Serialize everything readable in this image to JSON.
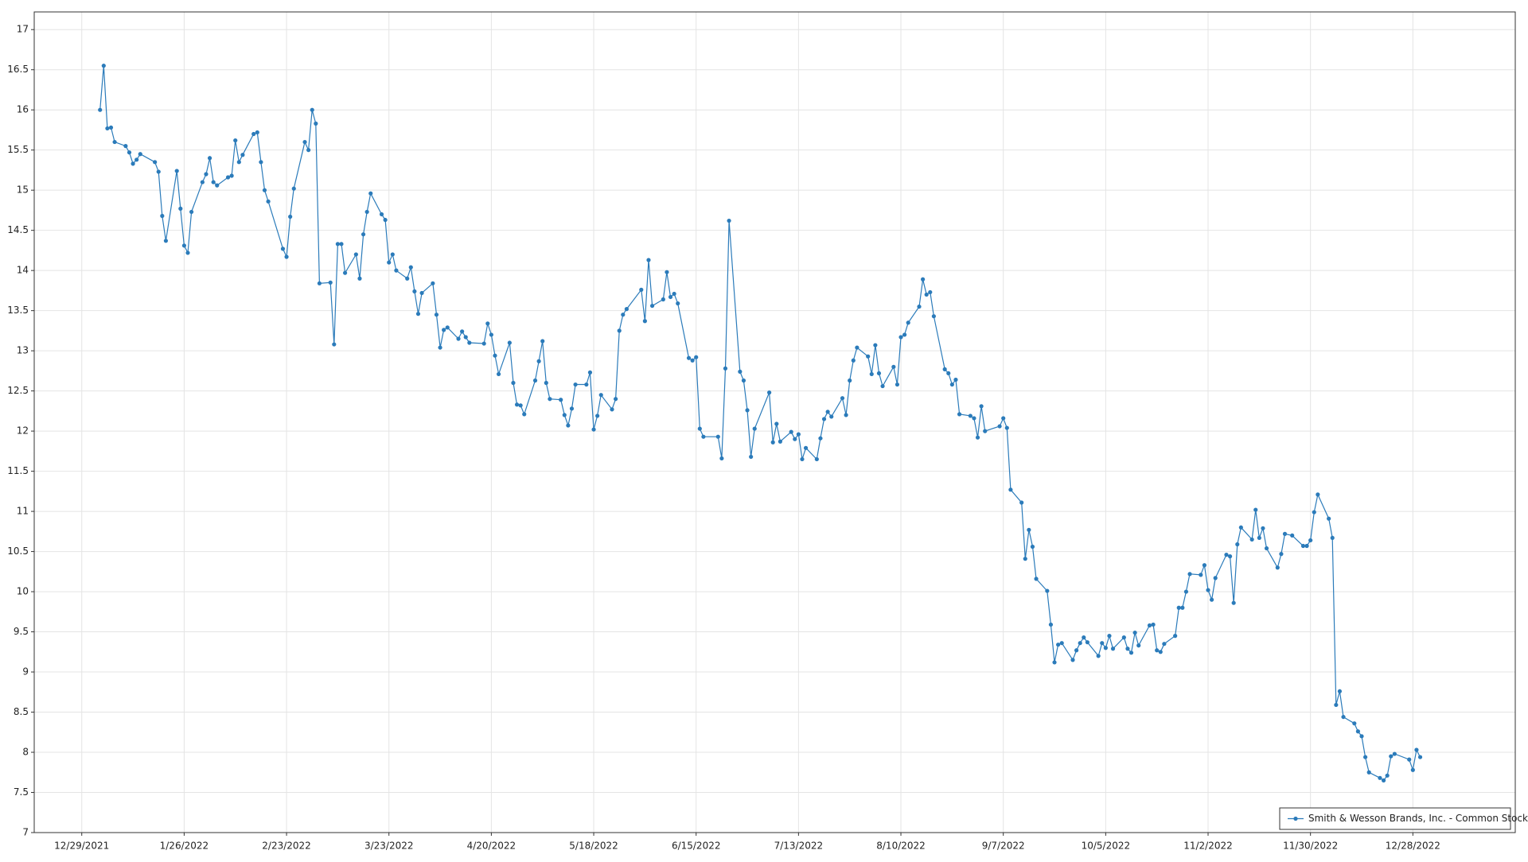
{
  "chart_data": {
    "type": "line",
    "x": [
      "1/3/2022",
      "1/4/2022",
      "1/5/2022",
      "1/6/2022",
      "1/7/2022",
      "1/10/2022",
      "1/11/2022",
      "1/12/2022",
      "1/13/2022",
      "1/14/2022",
      "1/18/2022",
      "1/19/2022",
      "1/20/2022",
      "1/21/2022",
      "1/24/2022",
      "1/25/2022",
      "1/26/2022",
      "1/27/2022",
      "1/28/2022",
      "1/31/2022",
      "2/1/2022",
      "2/2/2022",
      "2/3/2022",
      "2/4/2022",
      "2/7/2022",
      "2/8/2022",
      "2/9/2022",
      "2/10/2022",
      "2/11/2022",
      "2/14/2022",
      "2/15/2022",
      "2/16/2022",
      "2/17/2022",
      "2/18/2022",
      "2/22/2022",
      "2/23/2022",
      "2/24/2022",
      "2/25/2022",
      "2/28/2022",
      "3/1/2022",
      "3/2/2022",
      "3/3/2022",
      "3/4/2022",
      "3/7/2022",
      "3/8/2022",
      "3/9/2022",
      "3/10/2022",
      "3/11/2022",
      "3/14/2022",
      "3/15/2022",
      "3/16/2022",
      "3/17/2022",
      "3/18/2022",
      "3/21/2022",
      "3/22/2022",
      "3/23/2022",
      "3/24/2022",
      "3/25/2022",
      "3/28/2022",
      "3/29/2022",
      "3/30/2022",
      "3/31/2022",
      "4/1/2022",
      "4/4/2022",
      "4/5/2022",
      "4/6/2022",
      "4/7/2022",
      "4/8/2022",
      "4/11/2022",
      "4/12/2022",
      "4/13/2022",
      "4/14/2022",
      "4/18/2022",
      "4/19/2022",
      "4/20/2022",
      "4/21/2022",
      "4/22/2022",
      "4/25/2022",
      "4/26/2022",
      "4/27/2022",
      "4/28/2022",
      "4/29/2022",
      "5/2/2022",
      "5/3/2022",
      "5/4/2022",
      "5/5/2022",
      "5/6/2022",
      "5/9/2022",
      "5/10/2022",
      "5/11/2022",
      "5/12/2022",
      "5/13/2022",
      "5/16/2022",
      "5/17/2022",
      "5/18/2022",
      "5/19/2022",
      "5/20/2022",
      "5/23/2022",
      "5/24/2022",
      "5/25/2022",
      "5/26/2022",
      "5/27/2022",
      "5/31/2022",
      "6/1/2022",
      "6/2/2022",
      "6/3/2022",
      "6/6/2022",
      "6/7/2022",
      "6/8/2022",
      "6/9/2022",
      "6/10/2022",
      "6/13/2022",
      "6/14/2022",
      "6/15/2022",
      "6/16/2022",
      "6/17/2022",
      "6/21/2022",
      "6/22/2022",
      "6/23/2022",
      "6/24/2022",
      "6/27/2022",
      "6/28/2022",
      "6/29/2022",
      "6/30/2022",
      "7/1/2022",
      "7/5/2022",
      "7/6/2022",
      "7/7/2022",
      "7/8/2022",
      "7/11/2022",
      "7/12/2022",
      "7/13/2022",
      "7/14/2022",
      "7/15/2022",
      "7/18/2022",
      "7/19/2022",
      "7/20/2022",
      "7/21/2022",
      "7/22/2022",
      "7/25/2022",
      "7/26/2022",
      "7/27/2022",
      "7/28/2022",
      "7/29/2022",
      "8/1/2022",
      "8/2/2022",
      "8/3/2022",
      "8/4/2022",
      "8/5/2022",
      "8/8/2022",
      "8/9/2022",
      "8/10/2022",
      "8/11/2022",
      "8/12/2022",
      "8/15/2022",
      "8/16/2022",
      "8/17/2022",
      "8/18/2022",
      "8/19/2022",
      "8/22/2022",
      "8/23/2022",
      "8/24/2022",
      "8/25/2022",
      "8/26/2022",
      "8/29/2022",
      "8/30/2022",
      "8/31/2022",
      "9/1/2022",
      "9/2/2022",
      "9/6/2022",
      "9/7/2022",
      "9/8/2022",
      "9/9/2022",
      "9/12/2022",
      "9/13/2022",
      "9/14/2022",
      "9/15/2022",
      "9/16/2022",
      "9/19/2022",
      "9/20/2022",
      "9/21/2022",
      "9/22/2022",
      "9/23/2022",
      "9/26/2022",
      "9/27/2022",
      "9/28/2022",
      "9/29/2022",
      "9/30/2022",
      "10/3/2022",
      "10/4/2022",
      "10/5/2022",
      "10/6/2022",
      "10/7/2022",
      "10/10/2022",
      "10/11/2022",
      "10/12/2022",
      "10/13/2022",
      "10/14/2022",
      "10/17/2022",
      "10/18/2022",
      "10/19/2022",
      "10/20/2022",
      "10/21/2022",
      "10/24/2022",
      "10/25/2022",
      "10/26/2022",
      "10/27/2022",
      "10/28/2022",
      "10/31/2022",
      "11/1/2022",
      "11/2/2022",
      "11/3/2022",
      "11/4/2022",
      "11/7/2022",
      "11/8/2022",
      "11/9/2022",
      "11/10/2022",
      "11/11/2022",
      "11/14/2022",
      "11/15/2022",
      "11/16/2022",
      "11/17/2022",
      "11/18/2022",
      "11/21/2022",
      "11/22/2022",
      "11/23/2022",
      "11/25/2022",
      "11/28/2022",
      "11/29/2022",
      "11/30/2022",
      "12/1/2022",
      "12/2/2022",
      "12/5/2022",
      "12/6/2022",
      "12/7/2022",
      "12/8/2022",
      "12/9/2022",
      "12/12/2022",
      "12/13/2022",
      "12/14/2022",
      "12/15/2022",
      "12/16/2022",
      "12/19/2022",
      "12/20/2022",
      "12/21/2022",
      "12/22/2022",
      "12/23/2022",
      "12/27/2022",
      "12/28/2022",
      "12/29/2022",
      "12/30/2022"
    ],
    "series": [
      {
        "name": "Smith & Wesson Brands, Inc. - Common Stock",
        "color": "#2b7bba",
        "values": [
          16.0,
          16.55,
          15.77,
          15.78,
          15.6,
          15.55,
          15.47,
          15.33,
          15.38,
          15.45,
          15.35,
          15.23,
          14.68,
          14.37,
          15.24,
          14.77,
          14.31,
          14.22,
          14.73,
          15.1,
          15.2,
          15.4,
          15.1,
          15.06,
          15.16,
          15.18,
          15.62,
          15.35,
          15.44,
          15.7,
          15.72,
          15.35,
          15.0,
          14.86,
          14.27,
          14.17,
          14.67,
          15.02,
          15.6,
          15.5,
          16.0,
          15.83,
          13.84,
          13.85,
          13.08,
          14.33,
          14.33,
          13.97,
          14.2,
          13.9,
          14.45,
          14.73,
          14.96,
          14.7,
          14.63,
          14.1,
          14.2,
          14.0,
          13.9,
          14.04,
          13.74,
          13.46,
          13.72,
          13.84,
          13.45,
          13.04,
          13.26,
          13.29,
          13.15,
          13.24,
          13.17,
          13.1,
          13.09,
          13.34,
          13.2,
          12.94,
          12.71,
          13.1,
          12.6,
          12.33,
          12.32,
          12.21,
          12.63,
          12.87,
          13.12,
          12.6,
          12.4,
          12.39,
          12.2,
          12.07,
          12.28,
          12.58,
          12.58,
          12.73,
          12.02,
          12.19,
          12.45,
          12.27,
          12.4,
          13.25,
          13.45,
          13.52,
          13.76,
          13.37,
          14.13,
          13.56,
          13.64,
          13.98,
          13.67,
          13.71,
          13.59,
          12.91,
          12.88,
          12.92,
          12.03,
          11.93,
          11.93,
          11.66,
          12.78,
          14.62,
          12.74,
          12.63,
          12.26,
          11.68,
          12.03,
          12.48,
          11.86,
          12.09,
          11.87,
          11.99,
          11.9,
          11.96,
          11.65,
          11.79,
          11.65,
          11.91,
          12.15,
          12.24,
          12.18,
          12.41,
          12.2,
          12.63,
          12.88,
          13.04,
          12.93,
          12.71,
          13.07,
          12.72,
          12.56,
          12.8,
          12.58,
          13.17,
          13.2,
          13.35,
          13.55,
          13.89,
          13.7,
          13.73,
          13.43,
          12.77,
          12.72,
          12.58,
          12.64,
          12.21,
          12.19,
          12.16,
          11.92,
          12.31,
          12.0,
          12.06,
          12.16,
          12.04,
          11.27,
          11.11,
          10.41,
          10.77,
          10.56,
          10.16,
          10.01,
          9.59,
          9.12,
          9.34,
          9.36,
          9.15,
          9.27,
          9.36,
          9.43,
          9.37,
          9.2,
          9.36,
          9.3,
          9.45,
          9.29,
          9.43,
          9.29,
          9.24,
          9.49,
          9.33,
          9.58,
          9.59,
          9.27,
          9.25,
          9.35,
          9.45,
          9.8,
          9.8,
          10.0,
          10.22,
          10.21,
          10.33,
          10.02,
          9.9,
          10.17,
          10.46,
          10.44,
          9.86,
          10.59,
          10.8,
          10.65,
          11.02,
          10.67,
          10.79,
          10.54,
          10.3,
          10.47,
          10.72,
          10.7,
          10.57,
          10.57,
          10.64,
          10.99,
          11.21,
          10.91,
          10.67,
          8.59,
          8.76,
          8.44,
          8.36,
          8.26,
          8.2,
          7.94,
          7.75,
          7.68,
          7.65,
          7.71,
          7.95,
          7.98,
          7.91,
          7.78,
          8.03,
          7.94
        ]
      }
    ],
    "xlim": [
      "12/16/2021",
      "1/25/2023"
    ],
    "xticks": [
      "12/29/2021",
      "1/26/2022",
      "2/23/2022",
      "3/23/2022",
      "4/20/2022",
      "5/18/2022",
      "6/15/2022",
      "7/13/2022",
      "8/10/2022",
      "9/7/2022",
      "10/5/2022",
      "11/2/2022",
      "11/30/2022",
      "12/28/2022"
    ],
    "ylim": [
      7,
      17.22
    ],
    "yticks": [
      7,
      7.5,
      8,
      8.5,
      9,
      9.5,
      10,
      10.5,
      11,
      11.5,
      12,
      12.5,
      13,
      13.5,
      14,
      14.5,
      15,
      15.5,
      16,
      16.5,
      17
    ],
    "grid": true,
    "legend": "lower right"
  }
}
